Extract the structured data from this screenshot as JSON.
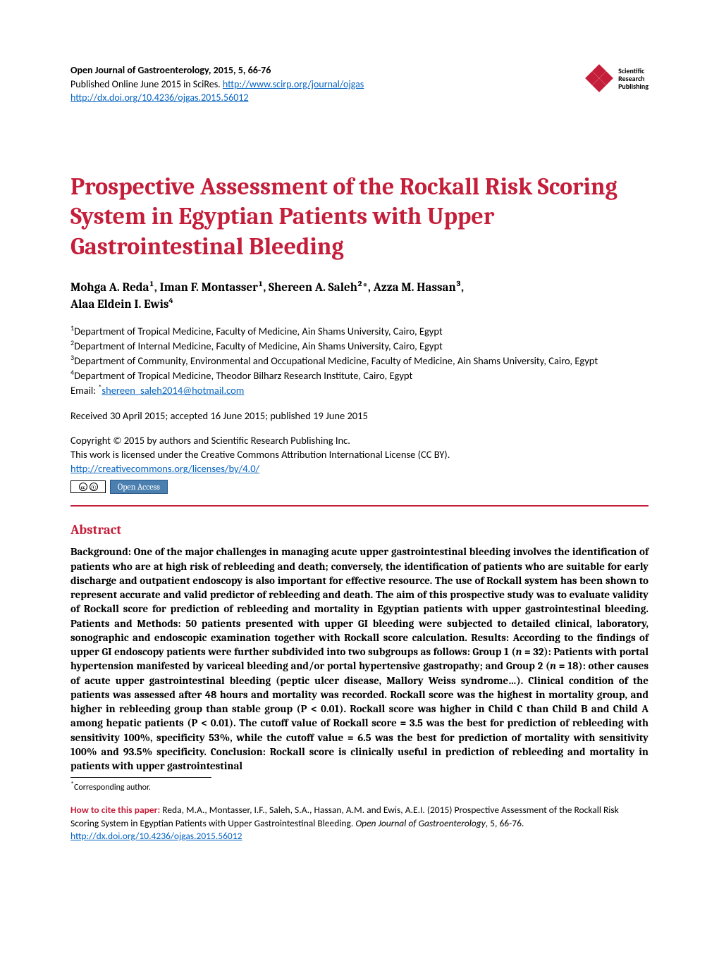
{
  "colors": {
    "accent": "#c41e3a",
    "link": "#0563c1",
    "oa_bg": "#4a7fb0",
    "oa_border": "#2a5a8a",
    "text": "#000000",
    "background": "#ffffff"
  },
  "header": {
    "journal_line": "Open Journal of Gastroenterology, 2015, 5, 66-76",
    "published_prefix": "Published Online June 2015 in SciRes. ",
    "journal_url": "http://www.scirp.org/journal/ojgas",
    "doi_url": "http://dx.doi.org/10.4236/ojgas.2015.56012",
    "logo_text_l1": "Scientific",
    "logo_text_l2": "Research",
    "logo_text_l3": "Publishing"
  },
  "title": "Prospective Assessment of the Rockall Risk Scoring System in Egyptian Patients with Upper Gastrointestinal Bleeding",
  "authors_line1": "Mohga A. Reda¹, Iman F. Montasser¹, Shereen A. Saleh²*, Azza M. Hassan³,",
  "authors_line2": "Alaa Eldein I. Ewis⁴",
  "affiliations": {
    "a1": "Department of Tropical Medicine, Faculty of Medicine, Ain Shams University, Cairo, Egypt",
    "a2": "Department of Internal Medicine, Faculty of Medicine, Ain Shams University, Cairo, Egypt",
    "a3": "Department of Community, Environmental and Occupational Medicine, Faculty of Medicine, Ain Shams University, Cairo, Egypt",
    "a4": "Department of Tropical Medicine, Theodor Bilharz Research Institute, Cairo, Egypt",
    "email_label": "Email: ",
    "email_value": "shereen_saleh2014@hotmail.com"
  },
  "dates": "Received 30 April 2015; accepted 16 June 2015; published 19 June 2015",
  "copyright": {
    "line1": "Copyright © 2015 by authors and Scientific Research Publishing Inc.",
    "line2": "This work is licensed under the Creative Commons Attribution International License (CC BY).",
    "license_url": "http://creativecommons.org/licenses/by/4.0/",
    "oa_label": "Open Access"
  },
  "abstract": {
    "heading": "Abstract",
    "body_pre": "Background: One of the major challenges in managing acute upper gastrointestinal bleeding involves the identification of patients who are at high risk of rebleeding and death; conversely, the identification of patients who are suitable for early discharge and outpatient endoscopy is also important for effective resource. The use of Rockall system has been shown to represent accurate and valid predictor of rebleeding and death. The aim of this prospective study was to evaluate validity of Rockall score for prediction of rebleeding and mortality in Egyptian patients with upper gastrointestinal bleeding. Patients and Methods: 50 patients presented with upper GI bleeding were subjected to detailed clinical, laboratory, sonographic and endoscopic examination together with Rockall score calculation. Results: According to the findings of upper GI endoscopy patients were further subdivided into two subgroups as follows: Group 1 (",
    "n1": "n",
    "body_mid1": " = 32): Patients with portal hypertension manifested by variceal bleeding and/or portal hypertensive gastropathy; and Group 2 (",
    "n2": "n",
    "body_post": " = 18): other causes of acute upper gastrointestinal bleeding (peptic ulcer disease, Mallory Weiss syndrome…). Clinical condition of the patients was assessed after 48 hours and mortality was recorded. Rockall score was the highest in mortality group, and higher in rebleeding group than stable group (P < 0.01). Rockall score was higher in Child C than Child B and Child A among hepatic patients (P < 0.01). The cutoff value of Rockall score = 3.5 was the best for prediction of rebleeding with sensitivity 100%, specificity 53%, while the cutoff value = 6.5 was the best for prediction of mortality with sensitivity 100% and 93.5% specificity. Conclusion: Rockall score is clinically useful in prediction of rebleeding and mortality in patients with upper gastrointestinal"
  },
  "corresponding": "Corresponding author.",
  "citation": {
    "label": "How to cite this paper: ",
    "text_pre": "Reda, M.A., Montasser, I.F., Saleh, S.A., Hassan, A.M. and Ewis, A.E.I. (2015) Prospective Assessment of the Rockall Risk Scoring System in Egyptian Patients with Upper Gastrointestinal Bleeding. ",
    "journal": "Open Journal of Gastroenterology",
    "text_post": ", 5, 66-76. ",
    "doi": "http://dx.doi.org/10.4236/ojgas.2015.56012"
  }
}
